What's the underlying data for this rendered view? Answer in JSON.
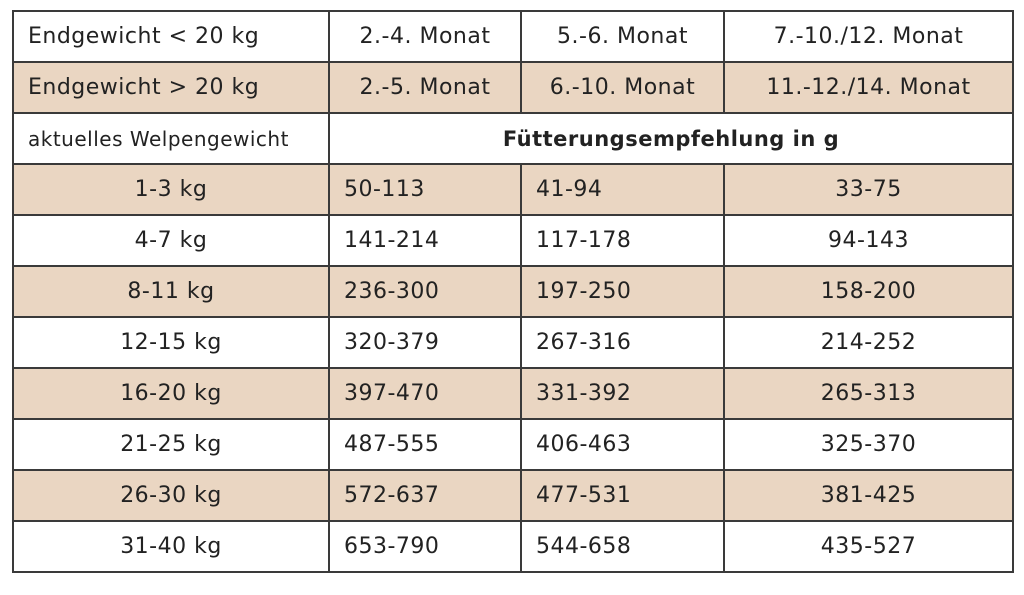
{
  "table": {
    "header_rows": [
      [
        "Endgewicht < 20 kg",
        "2.-4. Monat",
        "5.-6. Monat",
        "7.-10./12. Monat"
      ],
      [
        "Endgewicht > 20 kg",
        "2.-5. Monat",
        "6.-10. Monat",
        "11.-12./14. Monat"
      ]
    ],
    "subheader": {
      "label": "aktuelles Welpengewicht",
      "title": "Fütterungsempfehlung in g"
    },
    "rows": [
      [
        "1-3 kg",
        "50-113",
        "41-94",
        "33-75"
      ],
      [
        "4-7 kg",
        "141-214",
        "117-178",
        "94-143"
      ],
      [
        "8-11 kg",
        "236-300",
        "197-250",
        "158-200"
      ],
      [
        "12-15 kg",
        "320-379",
        "267-316",
        "214-252"
      ],
      [
        "16-20 kg",
        "397-470",
        "331-392",
        "265-313"
      ],
      [
        "21-25 kg",
        "487-555",
        "406-463",
        "325-370"
      ],
      [
        "26-30 kg",
        "572-637",
        "477-531",
        "381-425"
      ],
      [
        "31-40 kg",
        "653-790",
        "544-658",
        "435-527"
      ]
    ]
  }
}
